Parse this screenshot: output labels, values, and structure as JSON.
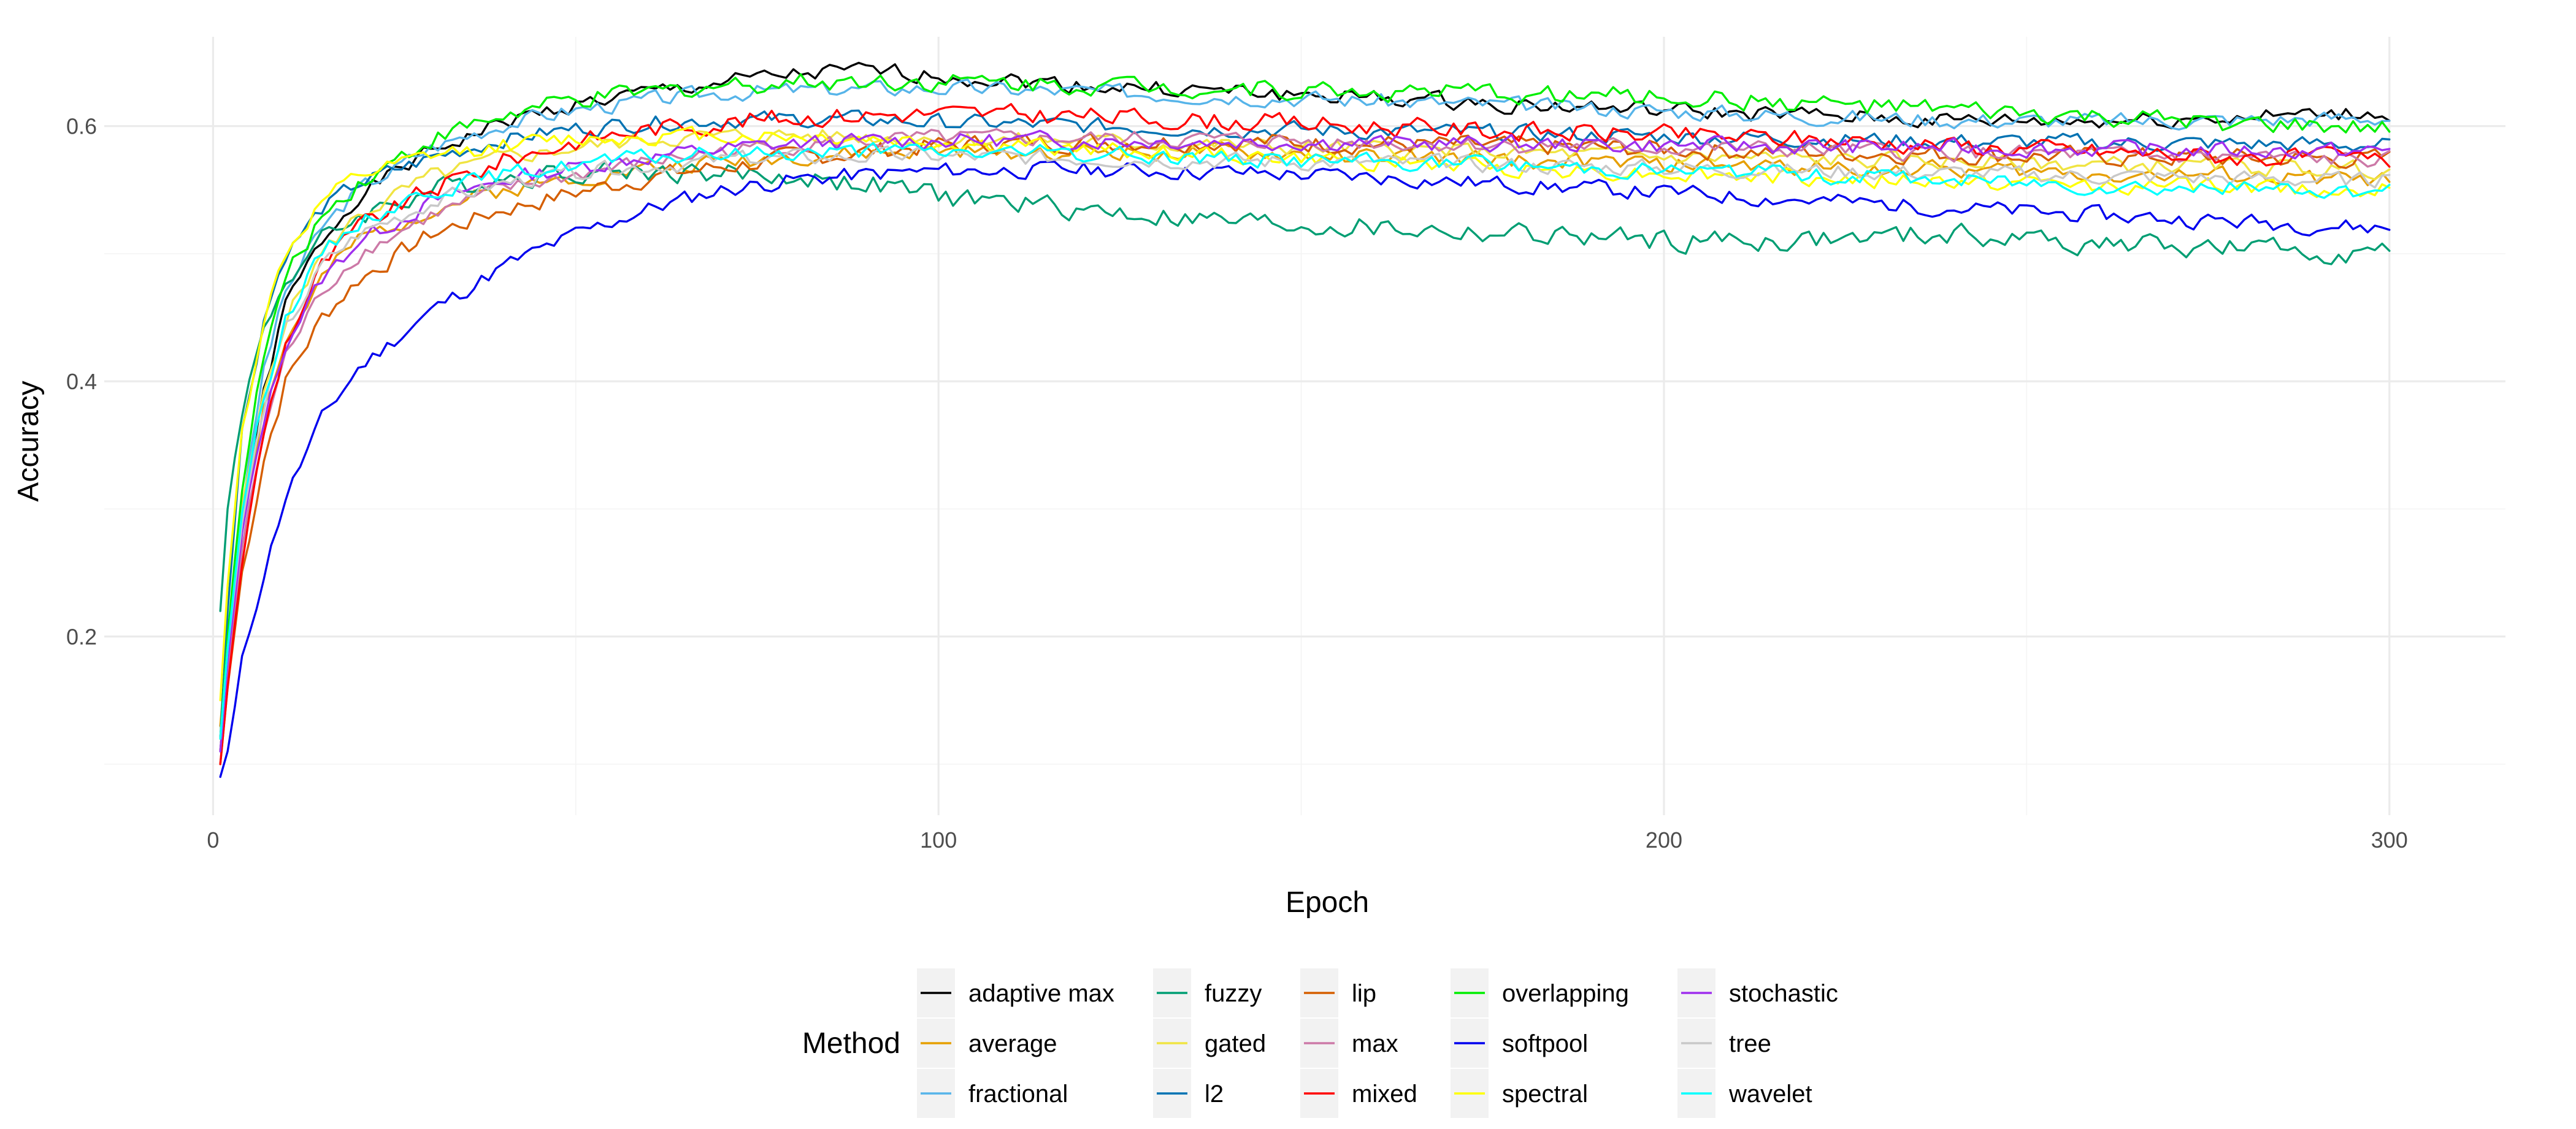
{
  "chart_data": {
    "type": "line",
    "title": "",
    "xlabel": "Epoch",
    "ylabel": "Accuracy",
    "xlim": [
      -15,
      316
    ],
    "ylim": [
      0.06,
      0.67
    ],
    "x_ticks": [
      0,
      100,
      200,
      300
    ],
    "x_tick_labels": [
      "0",
      "100",
      "200",
      "300"
    ],
    "y_ticks": [
      0.2,
      0.4,
      0.6
    ],
    "y_tick_labels": [
      "0.2",
      "0.4",
      "0.6"
    ],
    "grid": true,
    "legend": {
      "title": "Method",
      "placement": "bottom",
      "columns": 5,
      "rows": 3
    },
    "x_knots": [
      1,
      2,
      4,
      7,
      10,
      15,
      20,
      30,
      40,
      50,
      60,
      70,
      80,
      90,
      100,
      120,
      140,
      160,
      180,
      200,
      220,
      240,
      260,
      280,
      300
    ],
    "series": [
      {
        "name": "adaptive max",
        "color": "#000000",
        "noise": 0.006,
        "seed": 1,
        "values": [
          0.11,
          0.18,
          0.29,
          0.39,
          0.46,
          0.51,
          0.546,
          0.58,
          0.603,
          0.617,
          0.626,
          0.634,
          0.64,
          0.643,
          0.64,
          0.632,
          0.627,
          0.622,
          0.617,
          0.612,
          0.608,
          0.604,
          0.604,
          0.607,
          0.61
        ]
      },
      {
        "name": "average",
        "color": "#e69f00",
        "noise": 0.006,
        "seed": 2,
        "values": [
          0.13,
          0.2,
          0.3,
          0.38,
          0.43,
          0.48,
          0.51,
          0.535,
          0.55,
          0.56,
          0.567,
          0.572,
          0.576,
          0.578,
          0.58,
          0.58,
          0.579,
          0.576,
          0.573,
          0.57,
          0.568,
          0.566,
          0.563,
          0.56,
          0.558
        ]
      },
      {
        "name": "fractional",
        "color": "#56b4e9",
        "noise": 0.006,
        "seed": 3,
        "values": [
          0.12,
          0.19,
          0.3,
          0.41,
          0.47,
          0.52,
          0.55,
          0.583,
          0.602,
          0.613,
          0.62,
          0.626,
          0.628,
          0.629,
          0.63,
          0.627,
          0.624,
          0.62,
          0.616,
          0.612,
          0.608,
          0.605,
          0.604,
          0.605,
          0.607
        ]
      },
      {
        "name": "fuzzy",
        "color": "#009e73",
        "noise": 0.008,
        "seed": 4,
        "values": [
          0.22,
          0.3,
          0.38,
          0.44,
          0.48,
          0.51,
          0.53,
          0.55,
          0.56,
          0.565,
          0.565,
          0.563,
          0.56,
          0.555,
          0.545,
          0.535,
          0.525,
          0.52,
          0.515,
          0.51,
          0.51,
          0.515,
          0.508,
          0.503,
          0.5
        ]
      },
      {
        "name": "gated",
        "color": "#f0e442",
        "noise": 0.006,
        "seed": 5,
        "values": [
          0.12,
          0.19,
          0.3,
          0.39,
          0.45,
          0.5,
          0.53,
          0.56,
          0.575,
          0.583,
          0.59,
          0.592,
          0.593,
          0.592,
          0.59,
          0.588,
          0.585,
          0.582,
          0.579,
          0.576,
          0.574,
          0.572,
          0.57,
          0.568,
          0.566
        ]
      },
      {
        "name": "l2",
        "color": "#0072b2",
        "noise": 0.006,
        "seed": 6,
        "values": [
          0.12,
          0.22,
          0.36,
          0.45,
          0.5,
          0.535,
          0.555,
          0.575,
          0.59,
          0.598,
          0.603,
          0.605,
          0.605,
          0.605,
          0.603,
          0.6,
          0.598,
          0.596,
          0.594,
          0.592,
          0.59,
          0.588,
          0.587,
          0.586,
          0.585
        ]
      },
      {
        "name": "lip",
        "color": "#d55e00",
        "noise": 0.007,
        "seed": 7,
        "values": [
          0.1,
          0.16,
          0.25,
          0.34,
          0.4,
          0.45,
          0.48,
          0.515,
          0.535,
          0.548,
          0.56,
          0.568,
          0.575,
          0.58,
          0.585,
          0.588,
          0.588,
          0.586,
          0.584,
          0.582,
          0.58,
          0.578,
          0.576,
          0.575,
          0.574
        ]
      },
      {
        "name": "max",
        "color": "#cc79a7",
        "noise": 0.006,
        "seed": 8,
        "values": [
          0.11,
          0.17,
          0.27,
          0.36,
          0.42,
          0.47,
          0.5,
          0.53,
          0.55,
          0.562,
          0.572,
          0.58,
          0.585,
          0.588,
          0.59,
          0.59,
          0.589,
          0.587,
          0.585,
          0.583,
          0.581,
          0.579,
          0.577,
          0.575,
          0.573
        ]
      },
      {
        "name": "mixed",
        "color": "#ff0000",
        "noise": 0.007,
        "seed": 9,
        "values": [
          0.1,
          0.16,
          0.26,
          0.36,
          0.43,
          0.49,
          0.52,
          0.55,
          0.573,
          0.588,
          0.598,
          0.603,
          0.607,
          0.609,
          0.61,
          0.608,
          0.604,
          0.6,
          0.596,
          0.593,
          0.59,
          0.585,
          0.58,
          0.576,
          0.573
        ]
      },
      {
        "name": "overlapping",
        "color": "#00ee00",
        "noise": 0.007,
        "seed": 10,
        "values": [
          0.12,
          0.2,
          0.32,
          0.42,
          0.48,
          0.53,
          0.556,
          0.59,
          0.608,
          0.62,
          0.626,
          0.632,
          0.635,
          0.636,
          0.635,
          0.633,
          0.63,
          0.627,
          0.625,
          0.623,
          0.618,
          0.612,
          0.606,
          0.601,
          0.597
        ]
      },
      {
        "name": "softpool",
        "color": "#0000ee",
        "noise": 0.006,
        "seed": 11,
        "values": [
          0.09,
          0.11,
          0.18,
          0.25,
          0.31,
          0.37,
          0.41,
          0.455,
          0.49,
          0.515,
          0.535,
          0.55,
          0.558,
          0.562,
          0.565,
          0.566,
          0.564,
          0.56,
          0.554,
          0.548,
          0.542,
          0.536,
          0.53,
          0.525,
          0.52
        ]
      },
      {
        "name": "spectral",
        "color": "#ffff00",
        "noise": 0.006,
        "seed": 12,
        "values": [
          0.15,
          0.24,
          0.36,
          0.45,
          0.5,
          0.54,
          0.56,
          0.576,
          0.585,
          0.59,
          0.592,
          0.593,
          0.592,
          0.59,
          0.587,
          0.582,
          0.577,
          0.572,
          0.567,
          0.563,
          0.559,
          0.556,
          0.554,
          0.552,
          0.55
        ]
      },
      {
        "name": "stochastic",
        "color": "#9f2fee",
        "noise": 0.006,
        "seed": 13,
        "values": [
          0.11,
          0.18,
          0.28,
          0.37,
          0.43,
          0.48,
          0.51,
          0.54,
          0.558,
          0.568,
          0.576,
          0.582,
          0.586,
          0.588,
          0.589,
          0.589,
          0.588,
          0.587,
          0.586,
          0.585,
          0.584,
          0.583,
          0.582,
          0.581,
          0.58
        ]
      },
      {
        "name": "tree",
        "color": "#c8c8c8",
        "noise": 0.006,
        "seed": 14,
        "values": [
          0.12,
          0.19,
          0.29,
          0.38,
          0.44,
          0.49,
          0.515,
          0.54,
          0.555,
          0.563,
          0.569,
          0.573,
          0.575,
          0.576,
          0.576,
          0.575,
          0.573,
          0.571,
          0.569,
          0.567,
          0.565,
          0.563,
          0.561,
          0.559,
          0.557
        ]
      },
      {
        "name": "wavelet",
        "color": "#00ffff",
        "noise": 0.006,
        "seed": 15,
        "values": [
          0.12,
          0.19,
          0.3,
          0.39,
          0.45,
          0.5,
          0.525,
          0.55,
          0.562,
          0.57,
          0.575,
          0.578,
          0.58,
          0.58,
          0.58,
          0.578,
          0.575,
          0.572,
          0.569,
          0.566,
          0.562,
          0.558,
          0.554,
          0.551,
          0.549
        ]
      }
    ]
  }
}
